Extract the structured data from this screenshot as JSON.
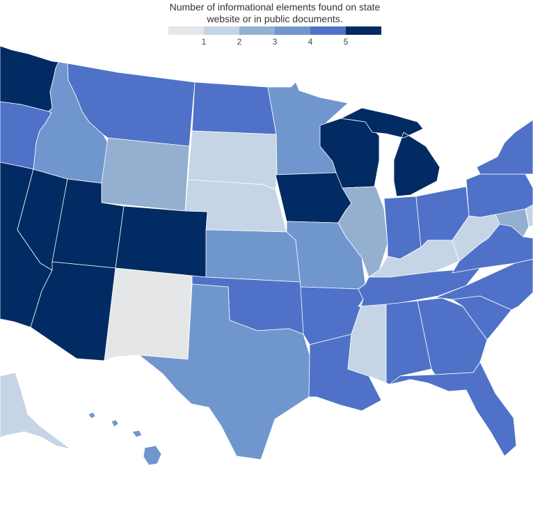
{
  "legend": {
    "title_line1": "Number of informational elements found on state",
    "title_line2": "website or in public documents.",
    "colors": [
      "#e5e6e8",
      "#c6d5e6",
      "#94afcf",
      "#7096ce",
      "#4f72c8",
      "#022b63"
    ],
    "ticks": [
      "1",
      "2",
      "3",
      "4",
      "5"
    ]
  },
  "states": [
    {
      "id": "WA",
      "value": 5
    },
    {
      "id": "OR",
      "value": 4
    },
    {
      "id": "CA",
      "value": 5
    },
    {
      "id": "NV",
      "value": 5
    },
    {
      "id": "ID",
      "value": 3
    },
    {
      "id": "MT",
      "value": 4
    },
    {
      "id": "WY",
      "value": 2
    },
    {
      "id": "UT",
      "value": 5
    },
    {
      "id": "AZ",
      "value": 5
    },
    {
      "id": "CO",
      "value": 5
    },
    {
      "id": "NM",
      "value": 0
    },
    {
      "id": "ND",
      "value": 4
    },
    {
      "id": "SD",
      "value": 1
    },
    {
      "id": "NE",
      "value": 1
    },
    {
      "id": "KS",
      "value": 3
    },
    {
      "id": "OK",
      "value": 4
    },
    {
      "id": "TX",
      "value": 3
    },
    {
      "id": "MN",
      "value": 3
    },
    {
      "id": "IA",
      "value": 5
    },
    {
      "id": "MO",
      "value": 3
    },
    {
      "id": "AR",
      "value": 4
    },
    {
      "id": "LA",
      "value": 4
    },
    {
      "id": "WI",
      "value": 5
    },
    {
      "id": "MI",
      "value": 5
    },
    {
      "id": "IL",
      "value": 2
    },
    {
      "id": "IN",
      "value": 4
    },
    {
      "id": "OH",
      "value": 4
    },
    {
      "id": "KY",
      "value": 1
    },
    {
      "id": "TN",
      "value": 4
    },
    {
      "id": "MS",
      "value": 1
    },
    {
      "id": "AL",
      "value": 4
    },
    {
      "id": "GA",
      "value": 4
    },
    {
      "id": "FL",
      "value": 4
    },
    {
      "id": "SC",
      "value": 4
    },
    {
      "id": "NC",
      "value": 4
    },
    {
      "id": "VA",
      "value": 4
    },
    {
      "id": "WV",
      "value": 1
    },
    {
      "id": "MD",
      "value": 2
    },
    {
      "id": "DE",
      "value": 1
    },
    {
      "id": "PA",
      "value": 4
    },
    {
      "id": "NY",
      "value": 4
    },
    {
      "id": "AK",
      "value": 1
    },
    {
      "id": "HI",
      "value": 3
    }
  ]
}
